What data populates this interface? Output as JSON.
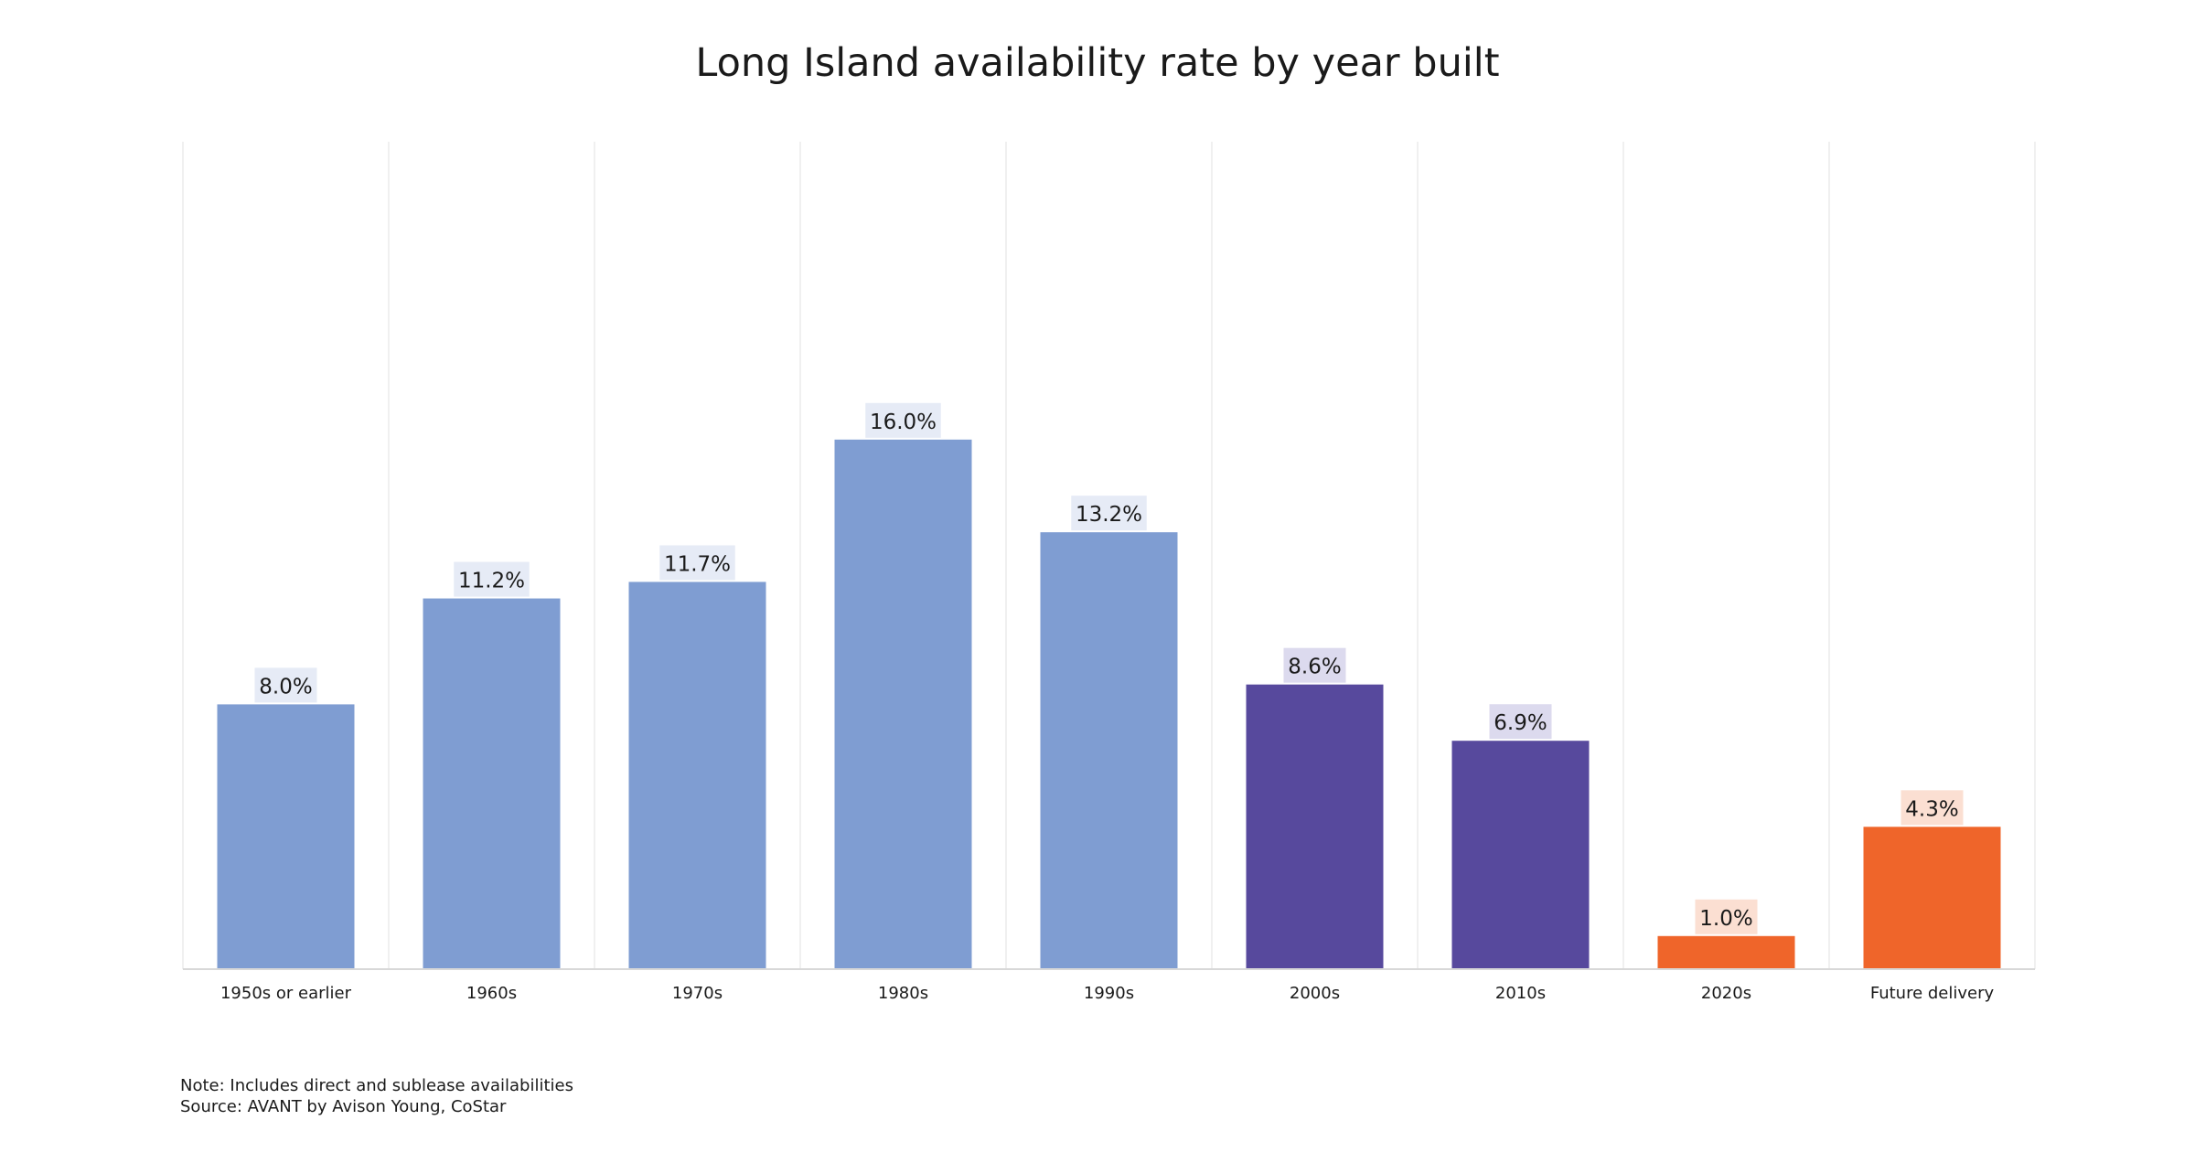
{
  "chart_data": {
    "type": "bar",
    "title": "Long Island availability rate by year built",
    "xlabel": "",
    "ylabel": "",
    "categories": [
      "1950s or earlier",
      "1960s",
      "1970s",
      "1980s",
      "1990s",
      "2000s",
      "2010s",
      "2020s",
      "Future delivery"
    ],
    "values": [
      8.0,
      11.2,
      11.7,
      16.0,
      13.2,
      8.6,
      6.9,
      1.0,
      4.3
    ],
    "value_labels": [
      "8.0%",
      "11.2%",
      "11.7%",
      "16.0%",
      "13.2%",
      "8.6%",
      "6.9%",
      "1.0%",
      "4.3%"
    ],
    "bar_colors": [
      "#7f9dd2",
      "#7f9dd2",
      "#7f9dd2",
      "#7f9dd2",
      "#7f9dd2",
      "#57499d",
      "#57499d",
      "#ef652a",
      "#ef652a"
    ],
    "label_bg_colors": [
      "#e6ebf6",
      "#e6ebf6",
      "#e6ebf6",
      "#e6ebf6",
      "#e6ebf6",
      "#dcdaee",
      "#dcdaee",
      "#fbdfd2",
      "#fbdfd2"
    ],
    "ylim": [
      0,
      25
    ],
    "grid": "vertical separators",
    "legend": "none"
  },
  "footer": {
    "note": "Note: Includes direct and sublease availabilities",
    "source": "Source: AVANT by Avison Young, CoStar"
  }
}
